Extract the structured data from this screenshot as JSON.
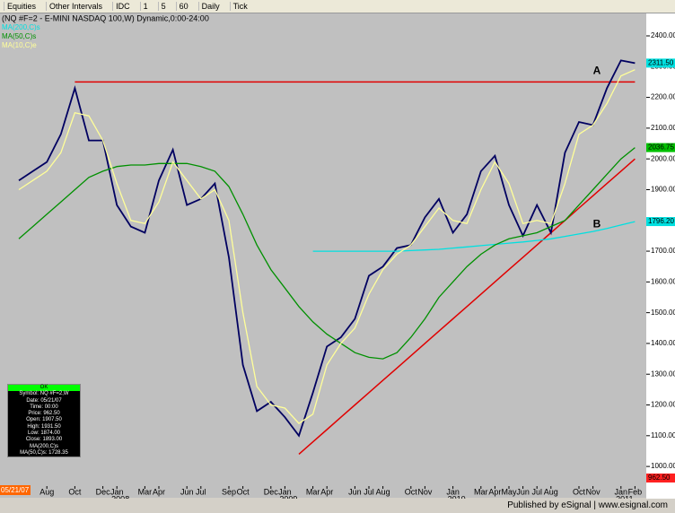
{
  "toolbar": [
    "Equities",
    "Other Intervals",
    "IDC",
    "1",
    "5",
    "60",
    "Daily",
    "Tick"
  ],
  "chart_data": {
    "type": "line",
    "title": "(NQ #F=2 - E-MINI NASDAQ 100,W) Dynamic,0:00-24:00",
    "categories": [
      null,
      null,
      "Aug",
      null,
      "Oct",
      null,
      "Dec",
      "Jan",
      null,
      "Mar",
      "Apr",
      null,
      "Jun",
      "Jul",
      null,
      "Sep",
      "Oct",
      null,
      "Dec",
      "Jan",
      null,
      "Mar",
      "Apr",
      null,
      "Jun",
      "Jul",
      "Aug",
      null,
      "Oct",
      "Nov",
      null,
      "Jan",
      null,
      "Mar",
      "Apr",
      "May",
      "Jun",
      "Jul",
      "Aug",
      null,
      "Oct",
      "Nov",
      null,
      "Jan",
      "Feb"
    ],
    "years": [
      null,
      null,
      null,
      null,
      null,
      null,
      null,
      "2008",
      null,
      null,
      null,
      null,
      null,
      null,
      null,
      null,
      null,
      null,
      null,
      "2009",
      null,
      null,
      null,
      null,
      null,
      null,
      null,
      null,
      null,
      null,
      null,
      "2010",
      null,
      null,
      null,
      null,
      null,
      null,
      null,
      null,
      null,
      null,
      null,
      "2011",
      null
    ],
    "ylim": [
      942,
      2435
    ],
    "yticks": [
      {
        "value": 1000,
        "label": "1000.00"
      },
      {
        "value": 1100,
        "label": "1100.00"
      },
      {
        "value": 1200,
        "label": "1200.00"
      },
      {
        "value": 1300,
        "label": "1300.00"
      },
      {
        "value": 1400,
        "label": "1400.00"
      },
      {
        "value": 1500,
        "label": "1500.00"
      },
      {
        "value": 1600,
        "label": "1600.00"
      },
      {
        "value": 1700,
        "label": "1700.00"
      },
      {
        "value": 1800,
        "label": "1800.00"
      },
      {
        "value": 1900,
        "label": "1900.00"
      },
      {
        "value": 2000,
        "label": "2000.00"
      },
      {
        "value": 2100,
        "label": "2100.00"
      },
      {
        "value": 2200,
        "label": "2200.00"
      },
      {
        "value": 2300,
        "label": "2300.00"
      },
      {
        "value": 2400,
        "label": "2400.00"
      }
    ],
    "series": [
      {
        "color": "#000060",
        "values": [
          1930,
          1960,
          1990,
          2080,
          2230,
          2060,
          2060,
          1850,
          1780,
          1760,
          1930,
          2030,
          1850,
          1870,
          1920,
          1680,
          1330,
          1180,
          1210,
          1160,
          1100,
          1240,
          1390,
          1420,
          1480,
          1620,
          1650,
          1710,
          1720,
          1810,
          1870,
          1760,
          1820,
          1960,
          2010,
          1850,
          1750,
          1850,
          1760,
          2020,
          2120,
          2110,
          2230,
          2320,
          2311.5
        ]
      },
      {
        "name": "MA(200,C)s",
        "color": "#00e0e0",
        "values": [
          null,
          null,
          null,
          null,
          null,
          null,
          null,
          null,
          null,
          null,
          null,
          null,
          null,
          null,
          null,
          null,
          null,
          null,
          null,
          null,
          null,
          1700,
          1700,
          1700,
          1700,
          1700,
          1700,
          1700,
          1702,
          1704,
          1706,
          1710,
          1714,
          1718,
          1722,
          1726,
          1730,
          1735,
          1740,
          1748,
          1756,
          1764,
          1774,
          1785,
          1796.2
        ]
      },
      {
        "name": "MA(50,C)s",
        "color": "#009000",
        "values": [
          1740,
          1780,
          1820,
          1860,
          1900,
          1940,
          1960,
          1975,
          1980,
          1980,
          1985,
          1985,
          1985,
          1975,
          1960,
          1910,
          1820,
          1720,
          1640,
          1580,
          1520,
          1470,
          1430,
          1400,
          1370,
          1355,
          1350,
          1370,
          1420,
          1480,
          1550,
          1600,
          1650,
          1690,
          1720,
          1740,
          1750,
          1760,
          1780,
          1800,
          1850,
          1900,
          1950,
          2000,
          2036.75
        ]
      },
      {
        "name": "MA(10,C)e",
        "color": "#ffff99",
        "values": [
          1900,
          1930,
          1960,
          2020,
          2150,
          2140,
          2060,
          1920,
          1800,
          1790,
          1860,
          1990,
          1930,
          1870,
          1900,
          1800,
          1500,
          1260,
          1200,
          1190,
          1140,
          1170,
          1330,
          1400,
          1450,
          1560,
          1640,
          1690,
          1720,
          1780,
          1840,
          1800,
          1790,
          1900,
          1990,
          1920,
          1790,
          1800,
          1790,
          1920,
          2080,
          2110,
          2180,
          2270,
          2290
        ]
      }
    ],
    "trendlines": [
      {
        "name": "A",
        "color": "#e00000",
        "values": [
          null,
          null,
          null,
          null,
          2250,
          2250,
          2250,
          2250,
          2250,
          2250,
          2250,
          2250,
          2250,
          2250,
          2250,
          2250,
          2250,
          2250,
          2250,
          2250,
          2250,
          2250,
          2250,
          2250,
          2250,
          2250,
          2250,
          2250,
          2250,
          2250,
          2250,
          2250,
          2250,
          2250,
          2250,
          2250,
          2250,
          2250,
          2250,
          2250,
          2250,
          2250,
          2250,
          2250,
          2250
        ]
      },
      {
        "name": "B",
        "color": "#e00000",
        "values": [
          null,
          null,
          null,
          null,
          null,
          null,
          null,
          null,
          null,
          null,
          null,
          null,
          null,
          null,
          null,
          null,
          null,
          null,
          null,
          null,
          1040,
          1080,
          1120,
          1160,
          1200,
          1240,
          1280,
          1320,
          1360,
          1400,
          1440,
          1480,
          1520,
          1560,
          1600,
          1640,
          1680,
          1720,
          1760,
          1800,
          1840,
          1880,
          1920,
          1960,
          2000
        ]
      }
    ],
    "last_values": [
      {
        "value": 2311.5,
        "label": "2311.50",
        "color": "#00e0e0"
      },
      {
        "value": 2036.75,
        "label": "2036.75",
        "color": "#00c000"
      },
      {
        "value": 1796.2,
        "label": "1796.20",
        "color": "#00e0e0"
      },
      {
        "value": 962.5,
        "label": "962.50",
        "color": "#ff2020"
      }
    ],
    "start_date": "05/21/07"
  },
  "data_window": [
    "OK",
    "Symbol: NQ #F=2,W",
    "Date: 05/21/07",
    "Time: 00:00",
    "Price: 962.50",
    "Open: 1907.50",
    "High: 1931.50",
    "Low: 1874.00",
    "Close: 1893.00",
    "MA(200,C)s",
    "MA(50,C)s: 1728.35"
  ],
  "footer": "Published by eSignal | www.esignal.com"
}
